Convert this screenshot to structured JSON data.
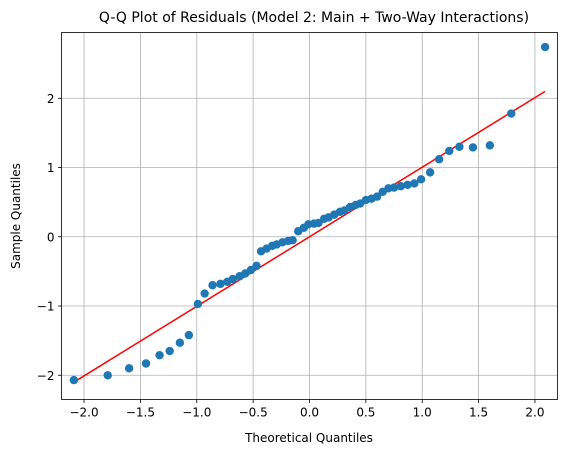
{
  "chart_data": {
    "type": "scatter",
    "title": "Q-Q Plot of Residuals (Model 2: Main + Two-Way Interactions)",
    "xlabel": "Theoretical Quantiles",
    "ylabel": "Sample Quantiles",
    "xlim": [
      -2.2,
      2.2
    ],
    "ylim": [
      -2.35,
      2.95
    ],
    "grid": true,
    "x_ticks": [
      -2.0,
      -1.5,
      -1.0,
      -0.5,
      0.0,
      0.5,
      1.0,
      1.5,
      2.0
    ],
    "x_tick_labels": [
      "−2.0",
      "−1.5",
      "−1.0",
      "−0.5",
      "0.0",
      "0.5",
      "1.0",
      "1.5",
      "2.0"
    ],
    "y_ticks": [
      -2,
      -1,
      0,
      1,
      2
    ],
    "y_tick_labels": [
      "−2",
      "−1",
      "0",
      "1",
      "2"
    ],
    "point_color": "#1f77b4",
    "line_color": "#ff0000",
    "reference_line": {
      "x": [
        -2.09,
        2.09
      ],
      "y": [
        -2.1,
        2.1
      ]
    },
    "points": [
      [
        -2.09,
        -2.07
      ],
      [
        -1.79,
        -2.0
      ],
      [
        -1.6,
        -1.9
      ],
      [
        -1.45,
        -1.83
      ],
      [
        -1.33,
        -1.71
      ],
      [
        -1.24,
        -1.65
      ],
      [
        -1.15,
        -1.53
      ],
      [
        -1.07,
        -1.42
      ],
      [
        -0.99,
        -0.97
      ],
      [
        -0.93,
        -0.82
      ],
      [
        -0.86,
        -0.7
      ],
      [
        -0.79,
        -0.68
      ],
      [
        -0.73,
        -0.65
      ],
      [
        -0.68,
        -0.61
      ],
      [
        -0.62,
        -0.57
      ],
      [
        -0.57,
        -0.53
      ],
      [
        -0.52,
        -0.48
      ],
      [
        -0.47,
        -0.42
      ],
      [
        -0.43,
        -0.21
      ],
      [
        -0.38,
        -0.17
      ],
      [
        -0.33,
        -0.13
      ],
      [
        -0.29,
        -0.11
      ],
      [
        -0.24,
        -0.08
      ],
      [
        -0.19,
        -0.06
      ],
      [
        -0.15,
        -0.05
      ],
      [
        -0.1,
        0.08
      ],
      [
        -0.05,
        0.13
      ],
      [
        -0.01,
        0.18
      ],
      [
        0.04,
        0.19
      ],
      [
        0.08,
        0.2
      ],
      [
        0.13,
        0.26
      ],
      [
        0.17,
        0.28
      ],
      [
        0.22,
        0.32
      ],
      [
        0.27,
        0.36
      ],
      [
        0.31,
        0.38
      ],
      [
        0.36,
        0.43
      ],
      [
        0.41,
        0.46
      ],
      [
        0.45,
        0.48
      ],
      [
        0.5,
        0.53
      ],
      [
        0.55,
        0.55
      ],
      [
        0.6,
        0.58
      ],
      [
        0.65,
        0.65
      ],
      [
        0.7,
        0.7
      ],
      [
        0.75,
        0.71
      ],
      [
        0.81,
        0.73
      ],
      [
        0.87,
        0.75
      ],
      [
        0.93,
        0.77
      ],
      [
        0.99,
        0.83
      ],
      [
        1.07,
        0.93
      ],
      [
        1.15,
        1.12
      ],
      [
        1.24,
        1.24
      ],
      [
        1.33,
        1.3
      ],
      [
        1.45,
        1.29
      ],
      [
        1.6,
        1.32
      ],
      [
        1.79,
        1.78
      ],
      [
        2.09,
        2.74
      ]
    ]
  }
}
